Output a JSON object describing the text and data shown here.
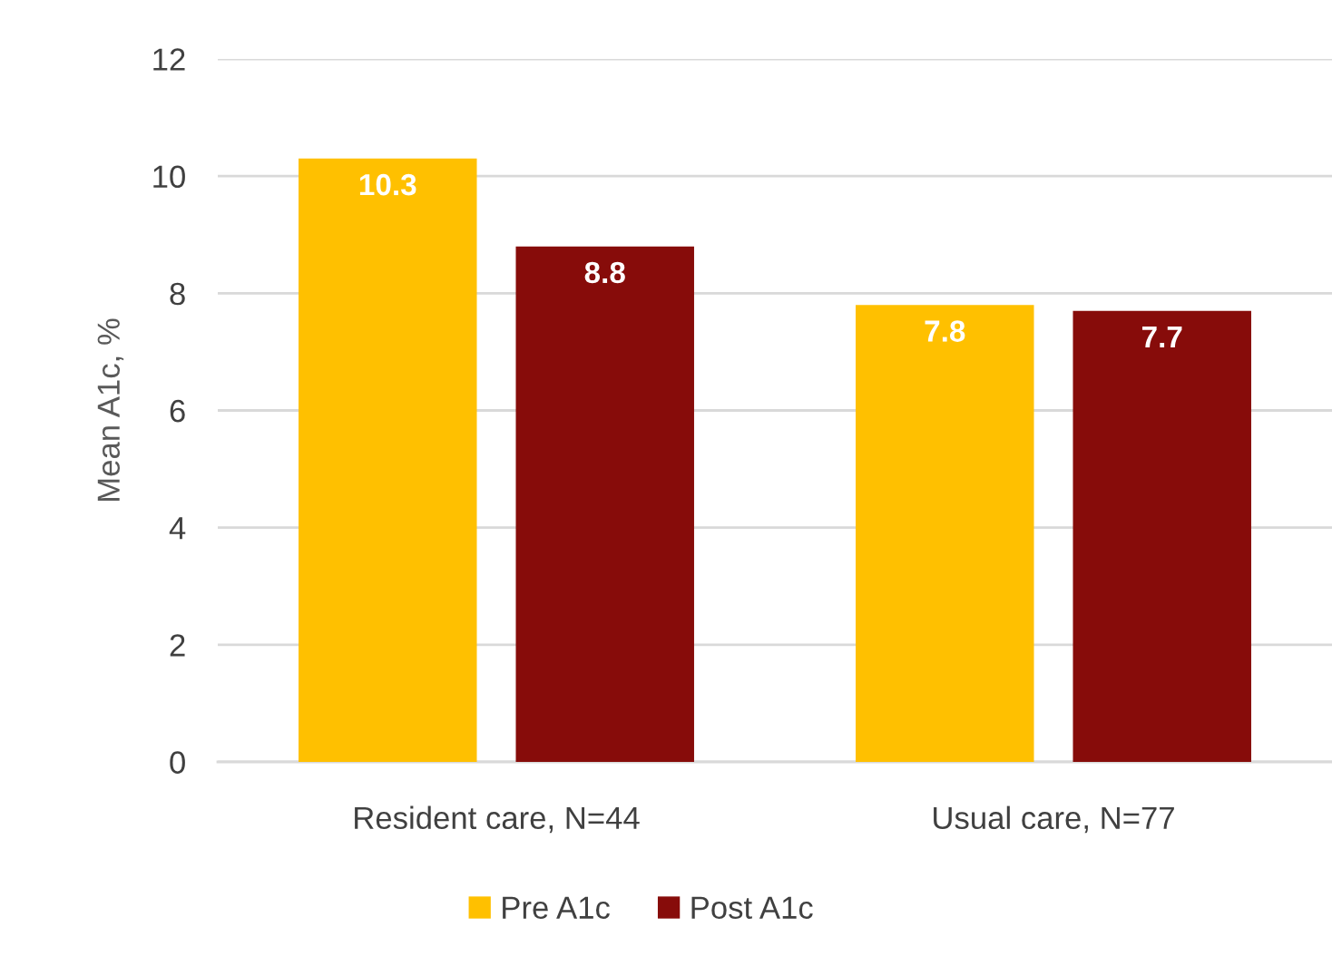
{
  "chart_data": {
    "type": "bar",
    "ylabel": "Mean A1c, %",
    "categories": [
      "Resident care, N=44",
      "Usual care, N=77"
    ],
    "series": [
      {
        "name": "Pre A1c",
        "color": "#ffc000",
        "values": [
          10.3,
          7.8
        ]
      },
      {
        "name": "Post A1c",
        "color": "#870c0a",
        "values": [
          8.8,
          7.7
        ]
      }
    ],
    "ylim": [
      0,
      12
    ],
    "yticks": [
      0,
      2,
      4,
      6,
      8,
      10,
      12
    ],
    "grid": "y",
    "legend": "bottom",
    "data_labels": true
  }
}
